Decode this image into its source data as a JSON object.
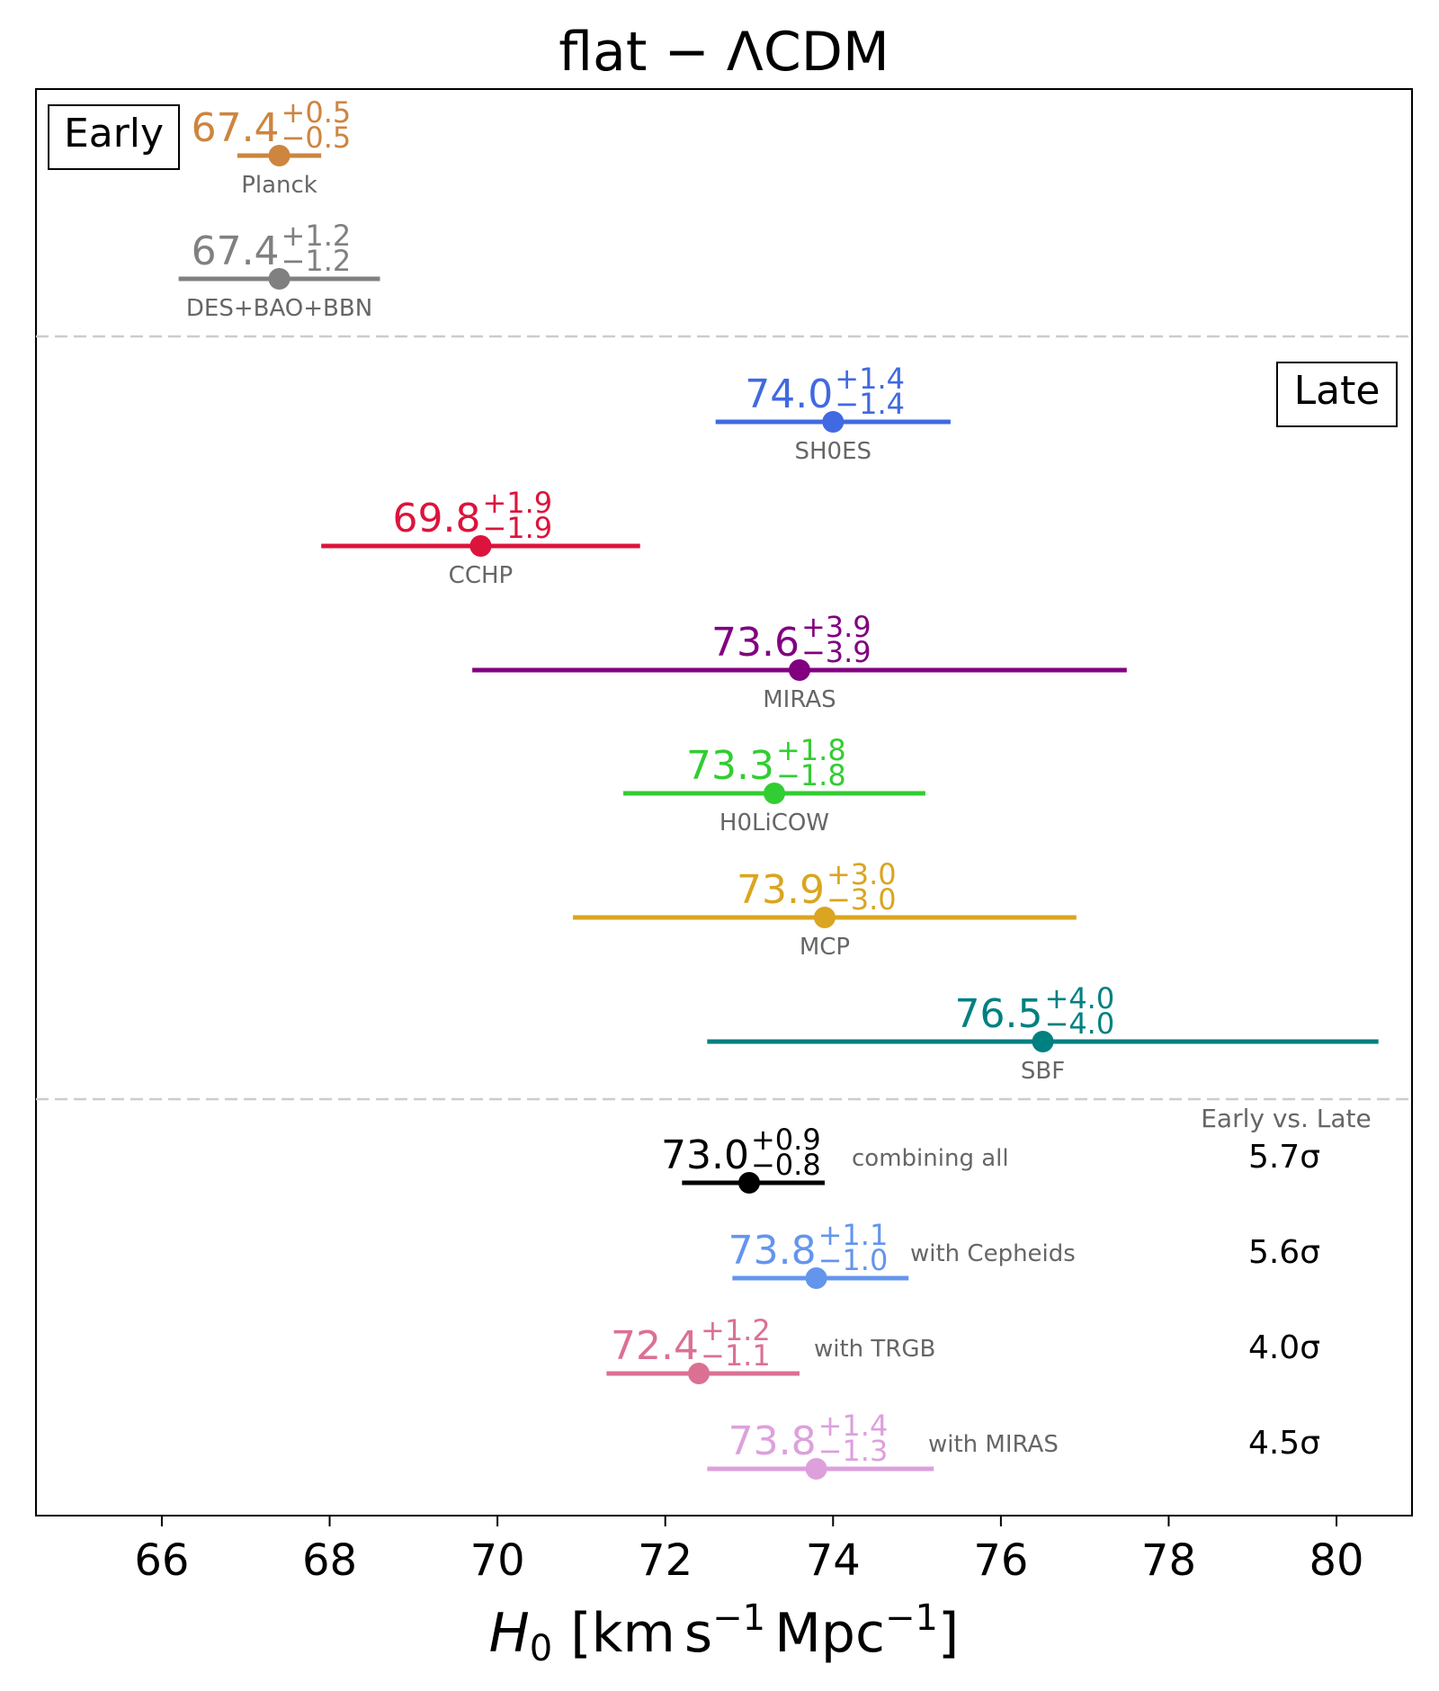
{
  "chart_data": {
    "type": "scatter",
    "title_main": "flat",
    "title_sep": "−",
    "title_model": "ΛCDM",
    "xlabel": {
      "symbol": "H",
      "subscript": "0",
      "bracket_open": "[",
      "unit1": "km",
      "unit2": "s",
      "exp1": "−1",
      "unit3": "Mpc",
      "exp2": "−1",
      "bracket_close": "]"
    },
    "xlim": [
      64.5,
      80.9
    ],
    "x_ticks": [
      {
        "value": 66,
        "label": "66"
      },
      {
        "value": 68,
        "label": "68"
      },
      {
        "value": 70,
        "label": "70"
      },
      {
        "value": 72,
        "label": "72"
      },
      {
        "value": 74,
        "label": "74"
      },
      {
        "value": 76,
        "label": "76"
      },
      {
        "value": 78,
        "label": "78"
      },
      {
        "value": 80,
        "label": "80"
      }
    ],
    "section_labels": {
      "early": "Early",
      "late": "Late",
      "comparison_header": "Early vs. Late"
    },
    "early": [
      {
        "name": "Planck",
        "value": 67.4,
        "plus": 0.5,
        "minus": 0.5,
        "value_text": "67.4",
        "plus_text": "+0.5",
        "minus_text": "−0.5",
        "color": "#CD853F"
      },
      {
        "name": "DES+BAO+BBN",
        "value": 67.4,
        "plus": 1.2,
        "minus": 1.2,
        "value_text": "67.4",
        "plus_text": "+1.2",
        "minus_text": "−1.2",
        "color": "#808080"
      }
    ],
    "late": [
      {
        "name": "SH0ES",
        "value": 74.0,
        "plus": 1.4,
        "minus": 1.4,
        "value_text": "74.0",
        "plus_text": "+1.4",
        "minus_text": "−1.4",
        "color": "#4169E1"
      },
      {
        "name": "CCHP",
        "value": 69.8,
        "plus": 1.9,
        "minus": 1.9,
        "value_text": "69.8",
        "plus_text": "+1.9",
        "minus_text": "−1.9",
        "color": "#DC143C"
      },
      {
        "name": "MIRAS",
        "value": 73.6,
        "plus": 3.9,
        "minus": 3.9,
        "value_text": "73.6",
        "plus_text": "+3.9",
        "minus_text": "−3.9",
        "color": "#800080"
      },
      {
        "name": "H0LiCOW",
        "value": 73.3,
        "plus": 1.8,
        "minus": 1.8,
        "value_text": "73.3",
        "plus_text": "+1.8",
        "minus_text": "−1.8",
        "color": "#32CD32"
      },
      {
        "name": "MCP",
        "value": 73.9,
        "plus": 3.0,
        "minus": 3.0,
        "value_text": "73.9",
        "plus_text": "+3.0",
        "minus_text": "−3.0",
        "color": "#DAA520"
      },
      {
        "name": "SBF",
        "value": 76.5,
        "plus": 4.0,
        "minus": 4.0,
        "value_text": "76.5",
        "plus_text": "+4.0",
        "minus_text": "−4.0",
        "color": "#008080"
      }
    ],
    "combined": [
      {
        "name": "combining all",
        "value": 73.0,
        "plus": 0.9,
        "minus": 0.8,
        "value_text": "73.0",
        "plus_text": "+0.9",
        "minus_text": "−0.8",
        "color": "#000000",
        "sigma": "5.7σ"
      },
      {
        "name": "with Cepheids",
        "value": 73.8,
        "plus": 1.1,
        "minus": 1.0,
        "value_text": "73.8",
        "plus_text": "+1.1",
        "minus_text": "−1.0",
        "color": "#6495ED",
        "sigma": "5.6σ"
      },
      {
        "name": "with TRGB",
        "value": 72.4,
        "plus": 1.2,
        "minus": 1.1,
        "value_text": "72.4",
        "plus_text": "+1.2",
        "minus_text": "−1.1",
        "color": "#DB7093",
        "sigma": "4.0σ"
      },
      {
        "name": "with MIRAS",
        "value": 73.8,
        "plus": 1.4,
        "minus": 1.3,
        "value_text": "73.8",
        "plus_text": "+1.4",
        "minus_text": "−1.3",
        "color": "#DDA0DD",
        "sigma": "4.5σ"
      }
    ]
  }
}
